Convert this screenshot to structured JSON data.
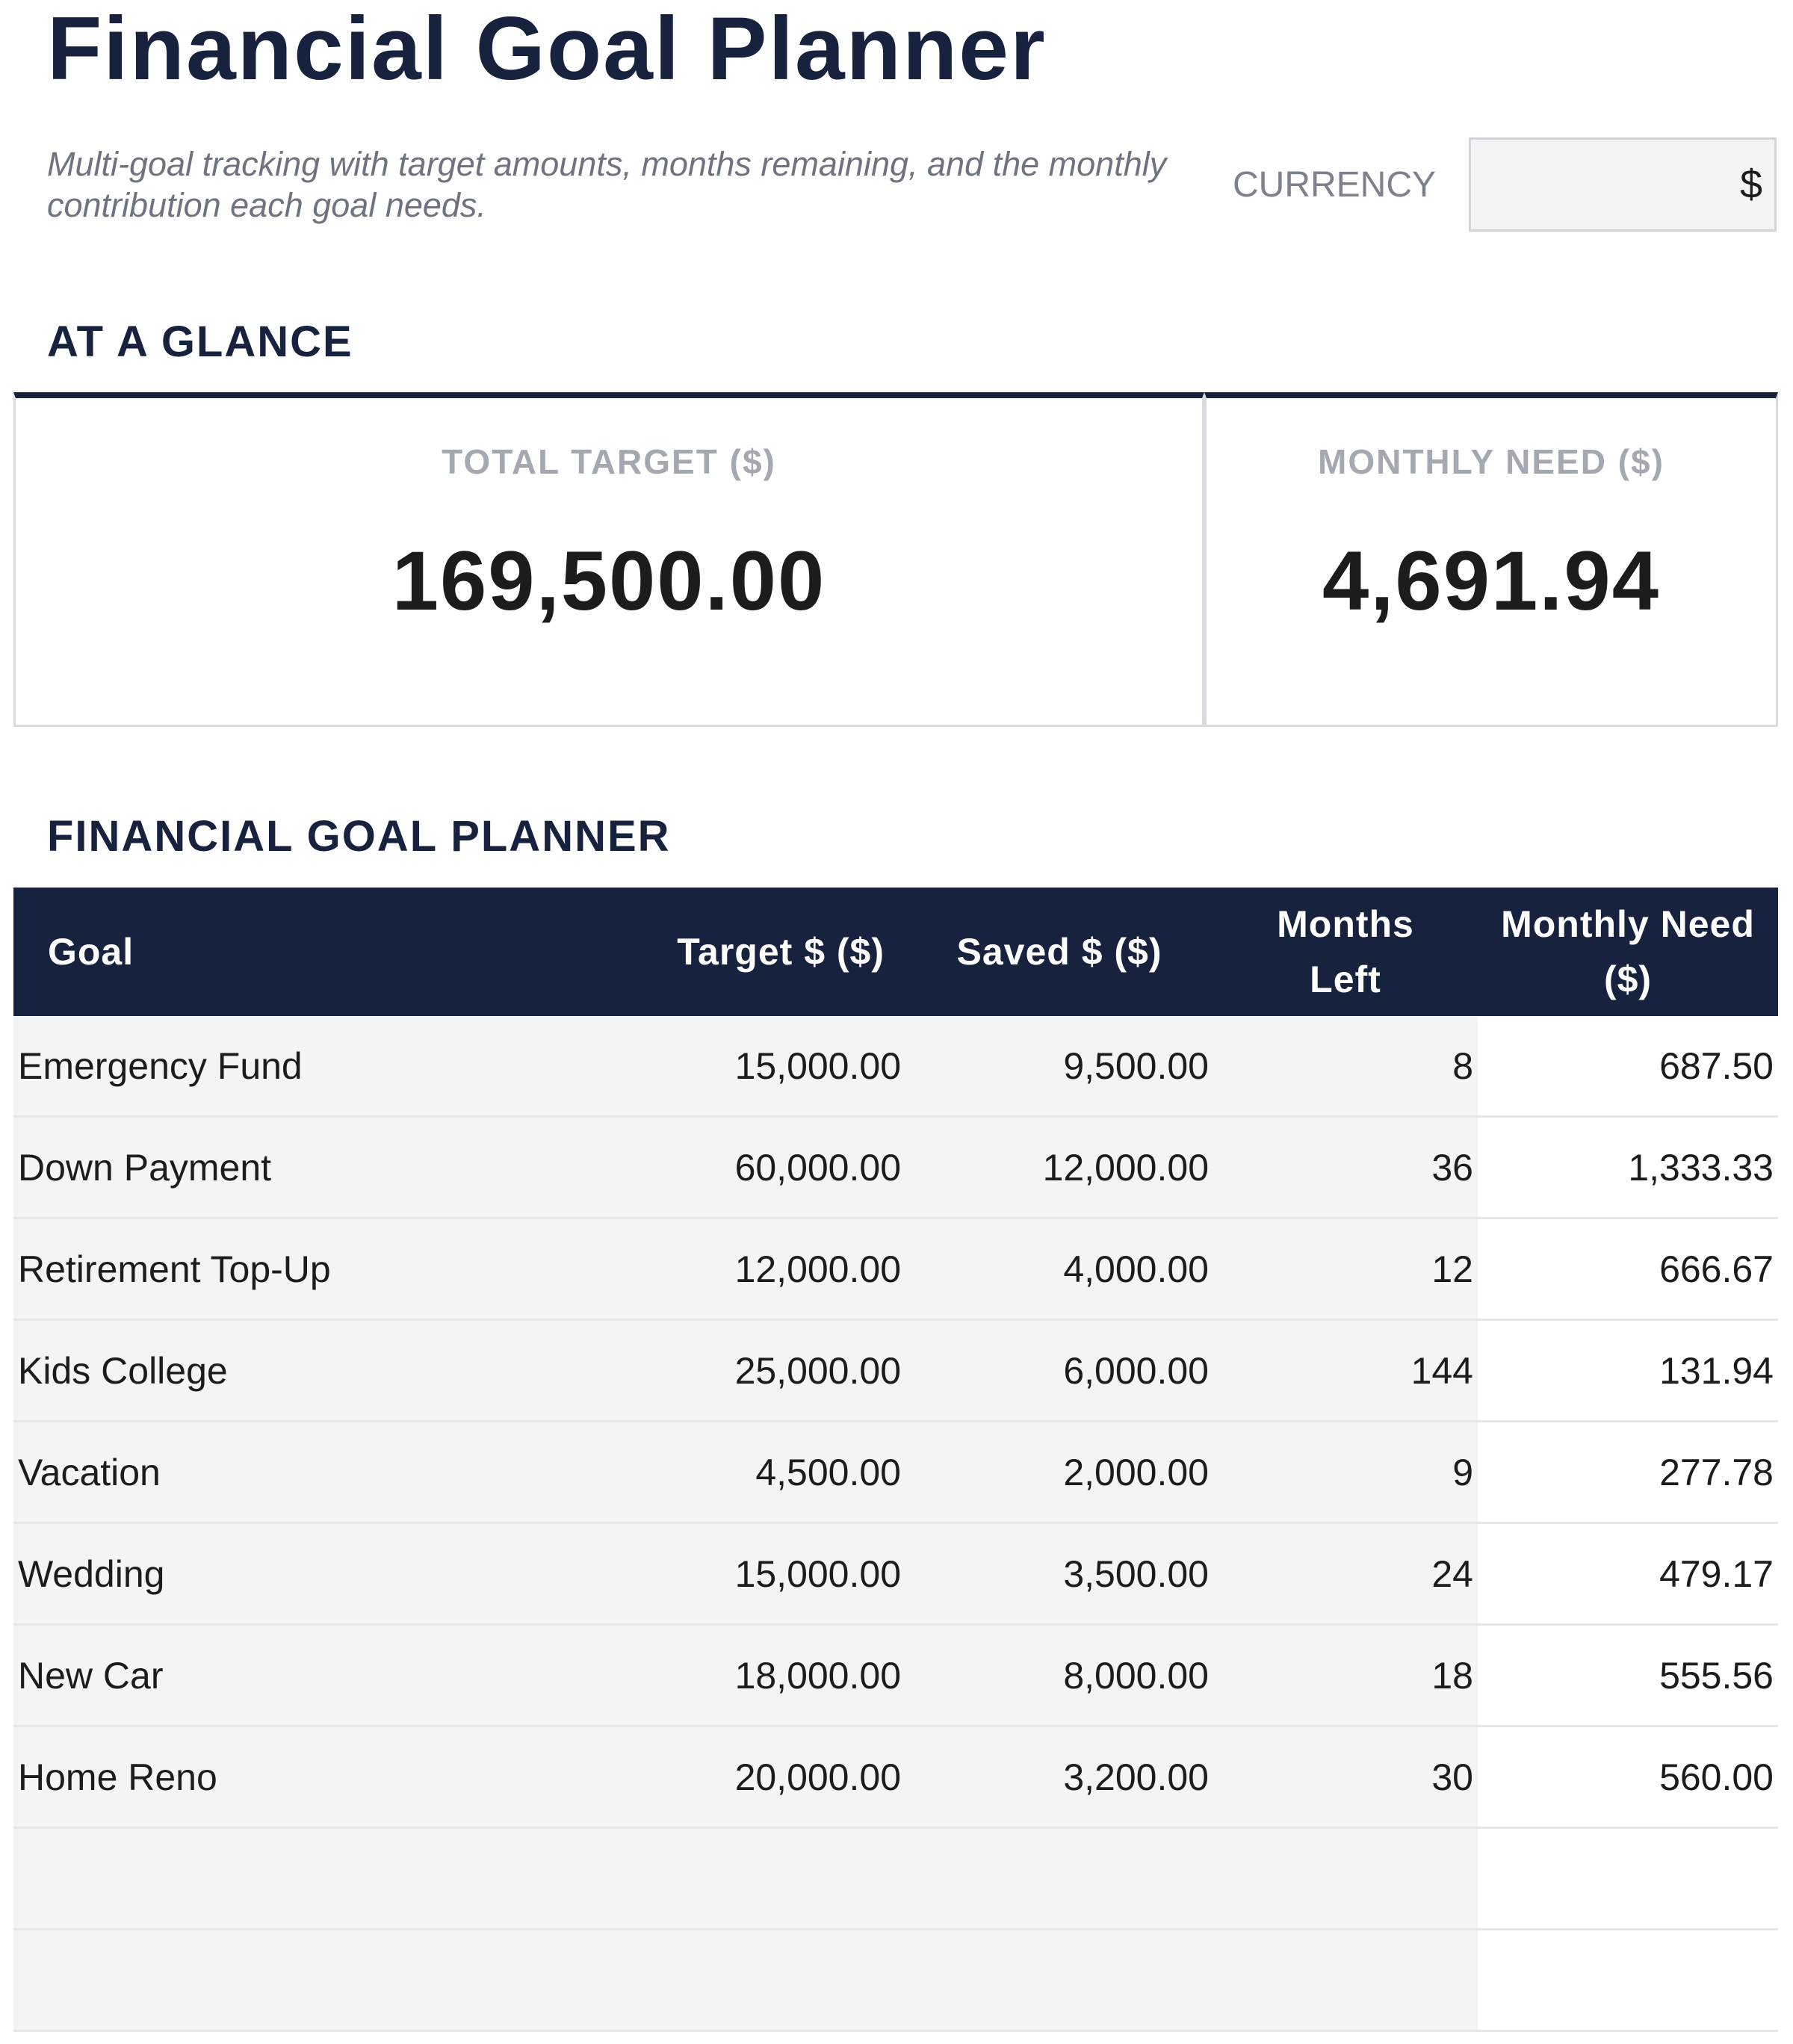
{
  "header": {
    "title": "Financial Goal Planner",
    "subtitle": "Multi-goal tracking with target amounts, months remaining, and the monthly contribution each goal needs.",
    "currency_label": "CURRENCY",
    "currency_value": "$"
  },
  "glance": {
    "section_title": "AT A GLANCE",
    "total_target_label": "TOTAL TARGET ($)",
    "total_target_value": "169,500.00",
    "monthly_need_label": "MONTHLY NEED ($)",
    "monthly_need_value": "4,691.94"
  },
  "planner": {
    "section_title": "FINANCIAL GOAL PLANNER",
    "columns": [
      "Goal",
      "Target $ ($)",
      "Saved $ ($)",
      "Months Left",
      "Monthly Need ($)"
    ],
    "rows": [
      {
        "goal": "Emergency Fund",
        "target": "15,000.00",
        "saved": "9,500.00",
        "months": "8",
        "monthly": "687.50"
      },
      {
        "goal": "Down Payment",
        "target": "60,000.00",
        "saved": "12,000.00",
        "months": "36",
        "monthly": "1,333.33"
      },
      {
        "goal": "Retirement Top-Up",
        "target": "12,000.00",
        "saved": "4,000.00",
        "months": "12",
        "monthly": "666.67"
      },
      {
        "goal": "Kids College",
        "target": "25,000.00",
        "saved": "6,000.00",
        "months": "144",
        "monthly": "131.94"
      },
      {
        "goal": "Vacation",
        "target": "4,500.00",
        "saved": "2,000.00",
        "months": "9",
        "monthly": "277.78"
      },
      {
        "goal": "Wedding",
        "target": "15,000.00",
        "saved": "3,500.00",
        "months": "24",
        "monthly": "479.17"
      },
      {
        "goal": "New Car",
        "target": "18,000.00",
        "saved": "8,000.00",
        "months": "18",
        "monthly": "555.56"
      },
      {
        "goal": "Home Reno",
        "target": "20,000.00",
        "saved": "3,200.00",
        "months": "30",
        "monthly": "560.00"
      },
      {
        "goal": "",
        "target": "",
        "saved": "",
        "months": "",
        "monthly": ""
      },
      {
        "goal": "",
        "target": "",
        "saved": "",
        "months": "",
        "monthly": ""
      }
    ]
  }
}
